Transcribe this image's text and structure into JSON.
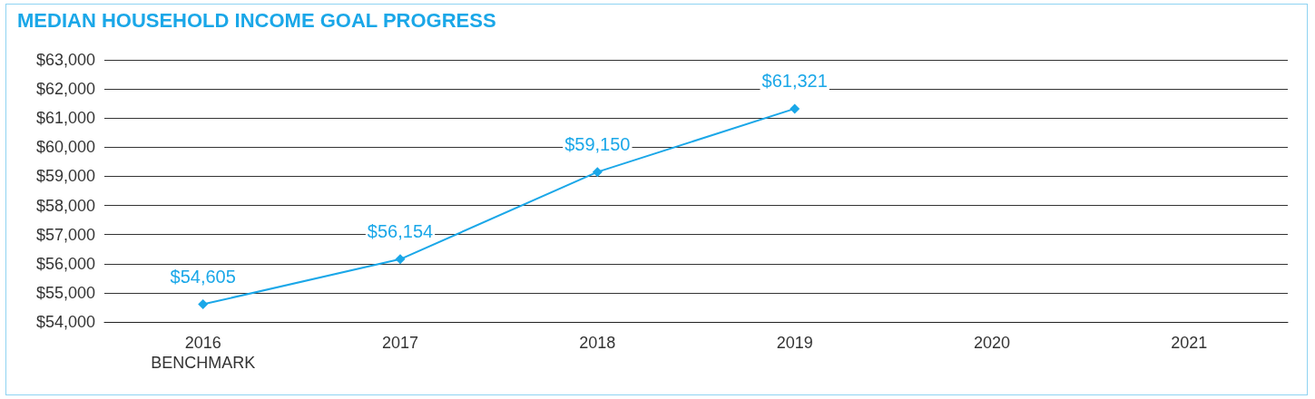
{
  "chart_data": {
    "type": "line",
    "title": "MEDIAN HOUSEHOLD INCOME GOAL PROGRESS",
    "categories": [
      "2016\nBENCHMARK",
      "2017",
      "2018",
      "2019",
      "2020",
      "2021"
    ],
    "series": [
      {
        "color": "#1aa7e8",
        "values": [
          54605,
          56154,
          59150,
          61321,
          null,
          null
        ],
        "value_labels": [
          "$54,605",
          "$56,154",
          "$59,150",
          "$61,321",
          null,
          null
        ]
      }
    ],
    "ylim": [
      54000,
      63000
    ],
    "yticks": [
      {
        "value": 54000,
        "label": "$54,000"
      },
      {
        "value": 55000,
        "label": "$55,000"
      },
      {
        "value": 56000,
        "label": "$56,000"
      },
      {
        "value": 57000,
        "label": "$57,000"
      },
      {
        "value": 58000,
        "label": "$58,000"
      },
      {
        "value": 59000,
        "label": "$59,000"
      },
      {
        "value": 60000,
        "label": "$60,000"
      },
      {
        "value": 61000,
        "label": "$61,000"
      },
      {
        "value": 62000,
        "label": "$62,000"
      },
      {
        "value": 63000,
        "label": "$63,000"
      }
    ],
    "grid": "y",
    "marker": "diamond",
    "line_style": "solid"
  }
}
